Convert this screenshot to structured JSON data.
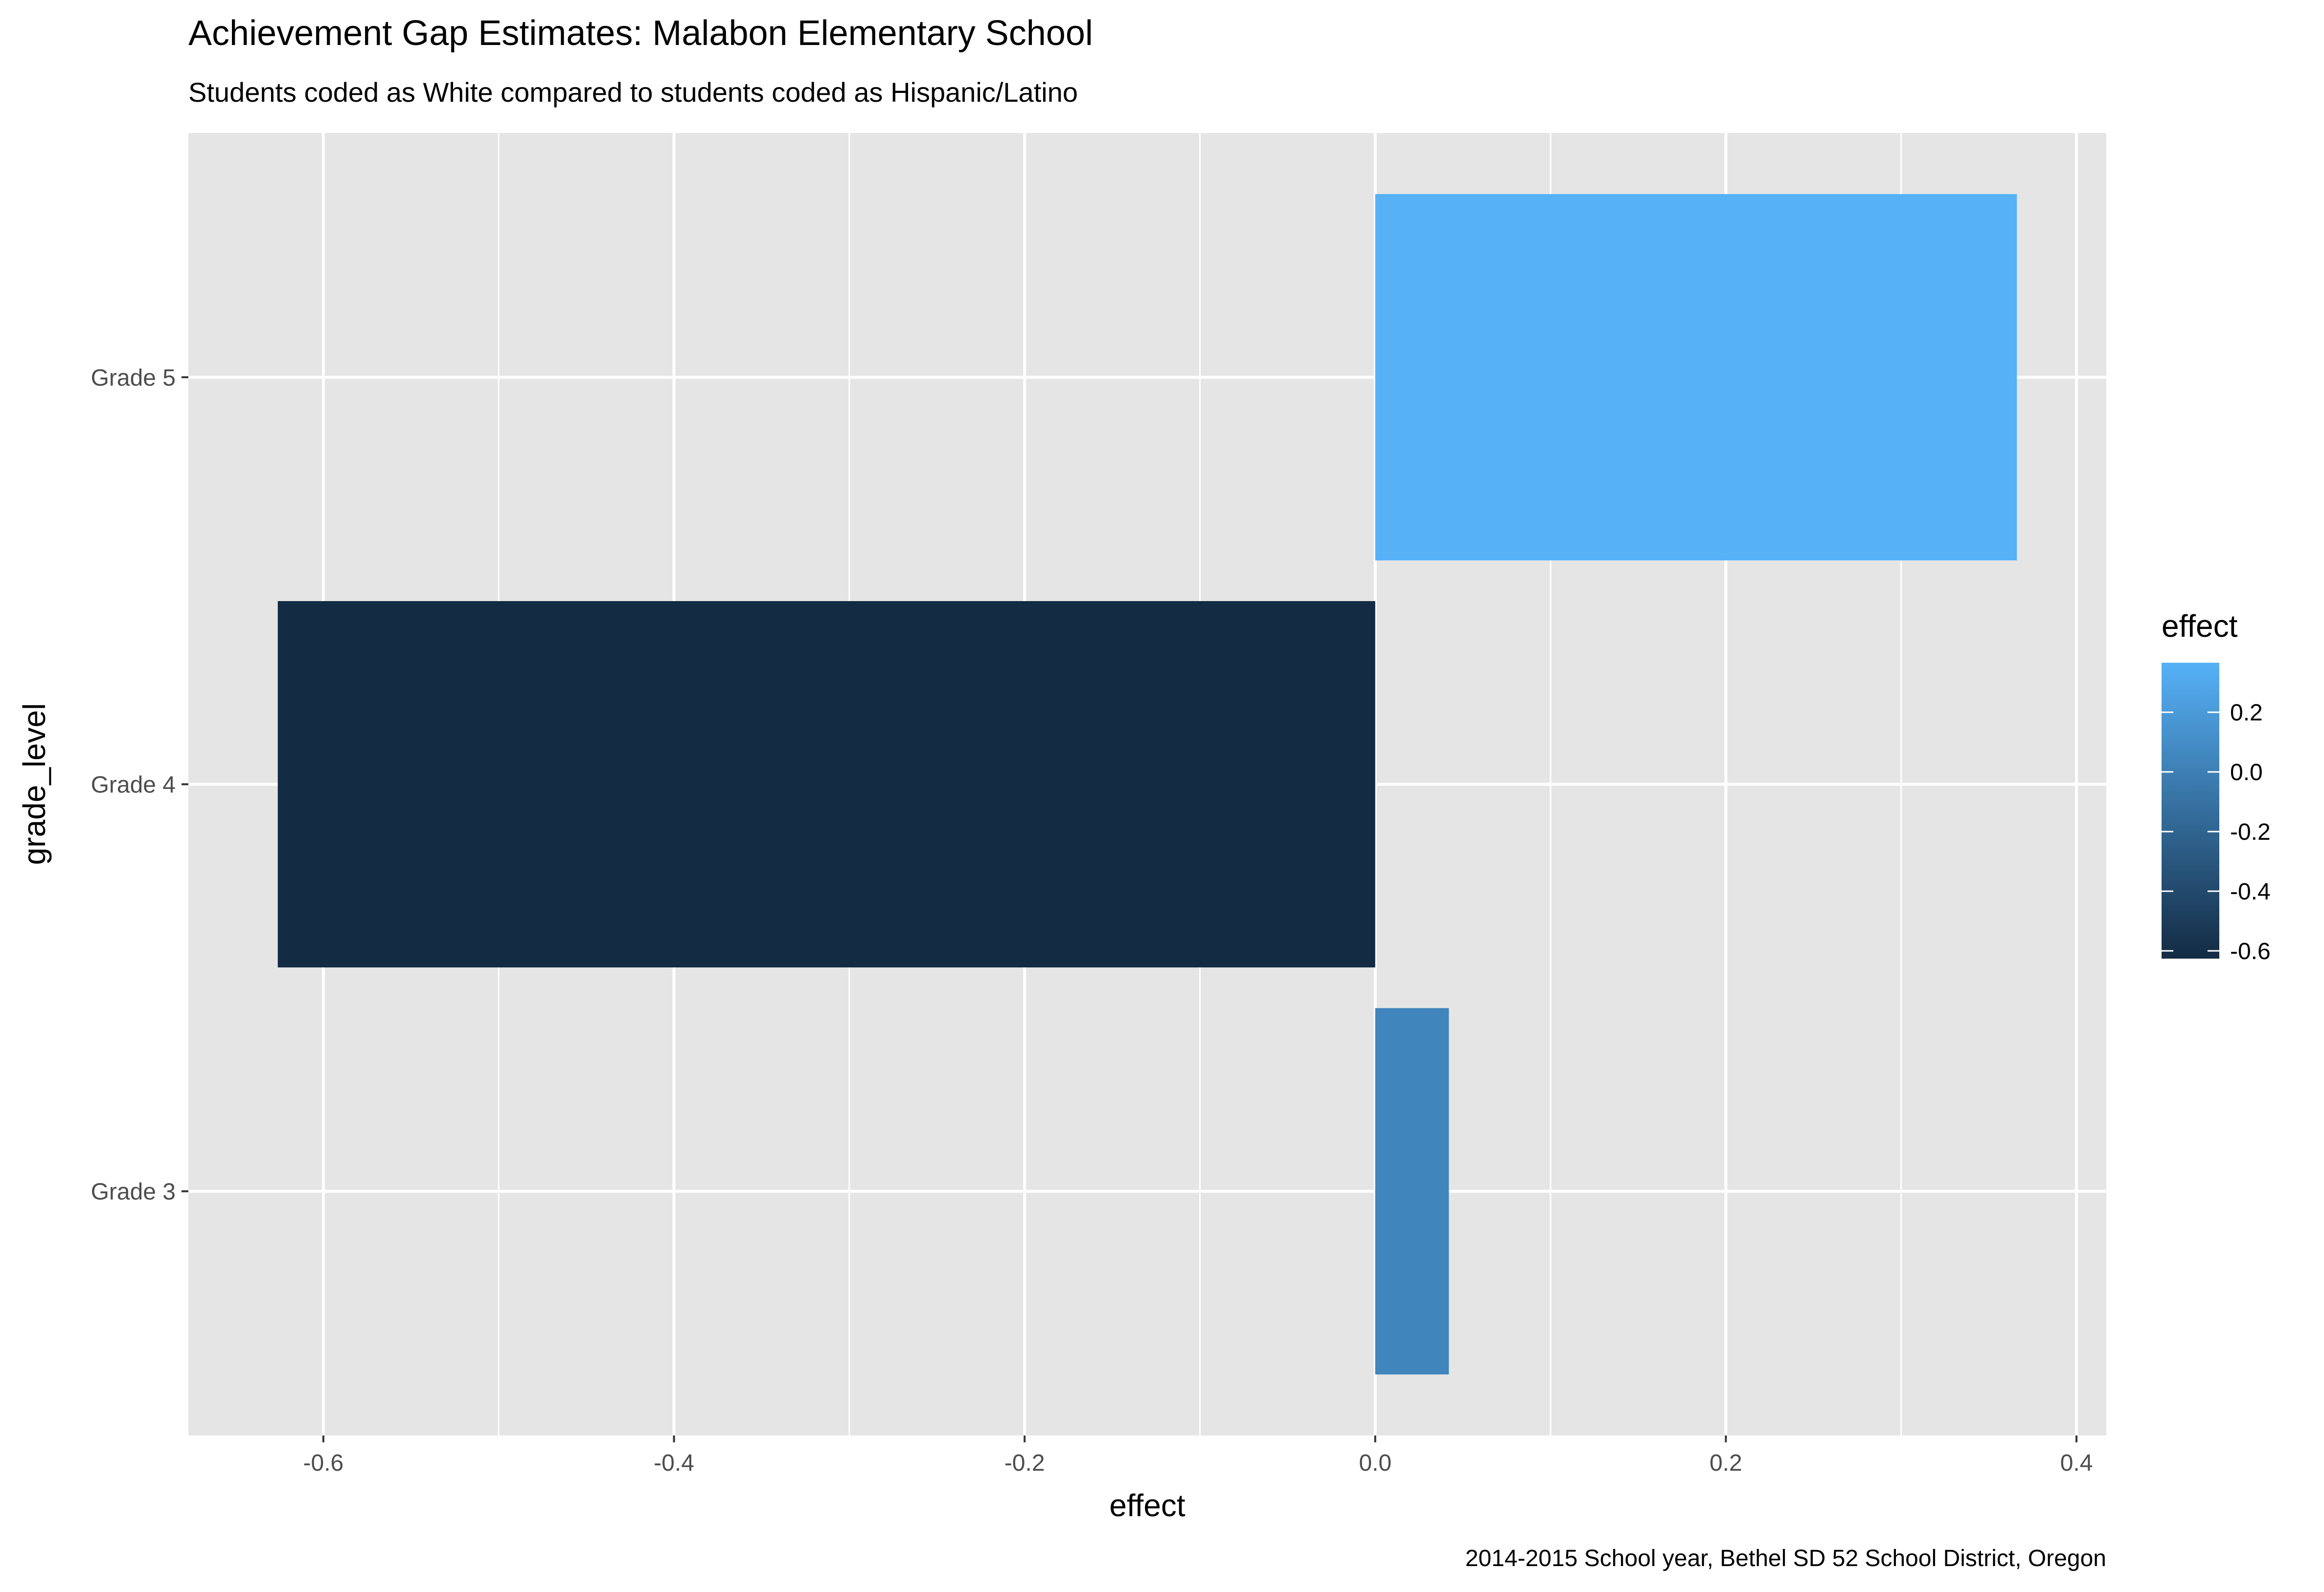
{
  "chart_data": {
    "type": "bar",
    "orientation": "horizontal",
    "title": "Achievement Gap Estimates: Malabon Elementary School",
    "subtitle": "Students coded as White compared to students coded as Hispanic/Latino",
    "caption": "2014-2015 School year, Bethel SD 52 School District, Oregon",
    "xlabel": "effect",
    "ylabel": "grade_level",
    "categories": [
      "Grade 3",
      "Grade 4",
      "Grade 5"
    ],
    "values": [
      0.042,
      -0.626,
      0.366
    ],
    "xlim": [
      -0.677,
      0.417
    ],
    "x_ticks": [
      {
        "value": -0.6,
        "label": "-0.6"
      },
      {
        "value": -0.4,
        "label": "-0.4"
      },
      {
        "value": -0.2,
        "label": "-0.2"
      },
      {
        "value": 0.0,
        "label": "0.0"
      },
      {
        "value": 0.2,
        "label": "0.2"
      },
      {
        "value": 0.4,
        "label": "0.4"
      }
    ],
    "x_minor_ticks": [
      -0.5,
      -0.3,
      -0.1,
      0.1,
      0.3
    ],
    "grid": true,
    "legend": {
      "title": "effect",
      "position": "right",
      "type": "colorbar",
      "range": [
        -0.626,
        0.366
      ],
      "ticks": [
        {
          "value": 0.2,
          "label": "0.2"
        },
        {
          "value": 0.0,
          "label": "0.0"
        },
        {
          "value": -0.2,
          "label": "-0.2"
        },
        {
          "value": -0.4,
          "label": "-0.4"
        },
        {
          "value": -0.6,
          "label": "-0.6"
        }
      ]
    },
    "colors": {
      "low": "#132B43",
      "high": "#56B1F7",
      "panel_background": "#E5E5E5",
      "grid": "#FFFFFF"
    }
  }
}
